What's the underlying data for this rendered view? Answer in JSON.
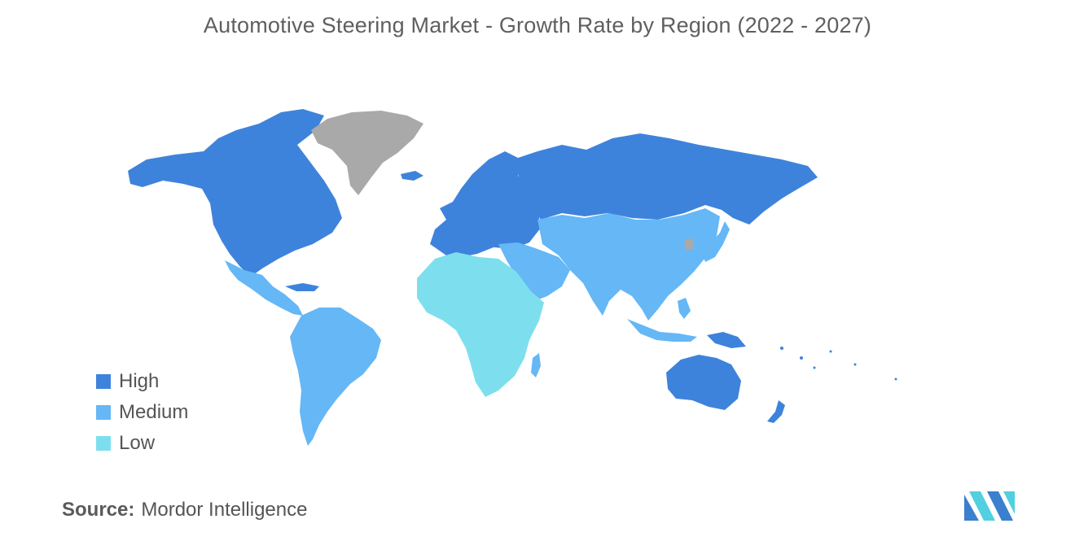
{
  "title": "Automotive Steering Market - Growth Rate by Region (2022 - 2027)",
  "colors": {
    "high": "#3e83db",
    "medium": "#65b7f6",
    "low": "#7ddfee",
    "no_data": "#a9a9a9",
    "logo_blue": "#3b7fcf",
    "logo_teal": "#52cfe0"
  },
  "legend": {
    "items": [
      {
        "label": "High",
        "level": "high"
      },
      {
        "label": "Medium",
        "level": "medium"
      },
      {
        "label": "Low",
        "level": "low"
      }
    ]
  },
  "regions": [
    {
      "region": "North America",
      "level": "high"
    },
    {
      "region": "Europe",
      "level": "high"
    },
    {
      "region": "Russia",
      "level": "high"
    },
    {
      "region": "Australia & New Zealand",
      "level": "high"
    },
    {
      "region": "Latin America",
      "level": "medium"
    },
    {
      "region": "Middle East",
      "level": "medium"
    },
    {
      "region": "Asia",
      "level": "medium"
    },
    {
      "region": "Africa",
      "level": "low"
    },
    {
      "region": "Greenland",
      "level": "no_data"
    }
  ],
  "source": {
    "label": "Source:",
    "value": "Mordor Intelligence"
  },
  "logo": {
    "icon": "mordor-intelligence-logo"
  }
}
